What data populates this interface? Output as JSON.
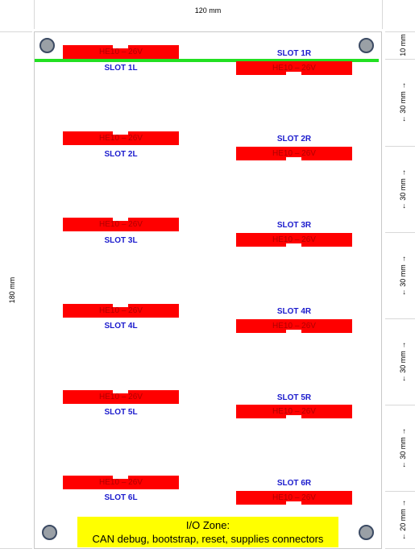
{
  "dimensions": {
    "width_label": "120 mm",
    "height_label": "180 mm",
    "right_labels": [
      "10 mm",
      "← 30 mm →",
      "← 30 mm →",
      "← 30 mm →",
      "← 30 mm →",
      "← 30 mm →",
      "← 20 mm →"
    ]
  },
  "connector_label": "HE10 – 26V",
  "slots_left": [
    "SLOT 1L",
    "SLOT 2L",
    "SLOT 3L",
    "SLOT 4L",
    "SLOT 5L",
    "SLOT 6L"
  ],
  "slots_right": [
    "SLOT 1R",
    "SLOT 2R",
    "SLOT 3R",
    "SLOT 4R",
    "SLOT 5R",
    "SLOT 6R"
  ],
  "io_zone": {
    "title": "I/O Zone:",
    "description": "CAN debug, bootstrap, reset, supplies connectors"
  },
  "colors": {
    "connector": "#ff0000",
    "slot_text": "#1a1acd",
    "rail": "#22e022",
    "io_zone": "#ffff00",
    "mounting_hole": "#9aa0a6"
  }
}
